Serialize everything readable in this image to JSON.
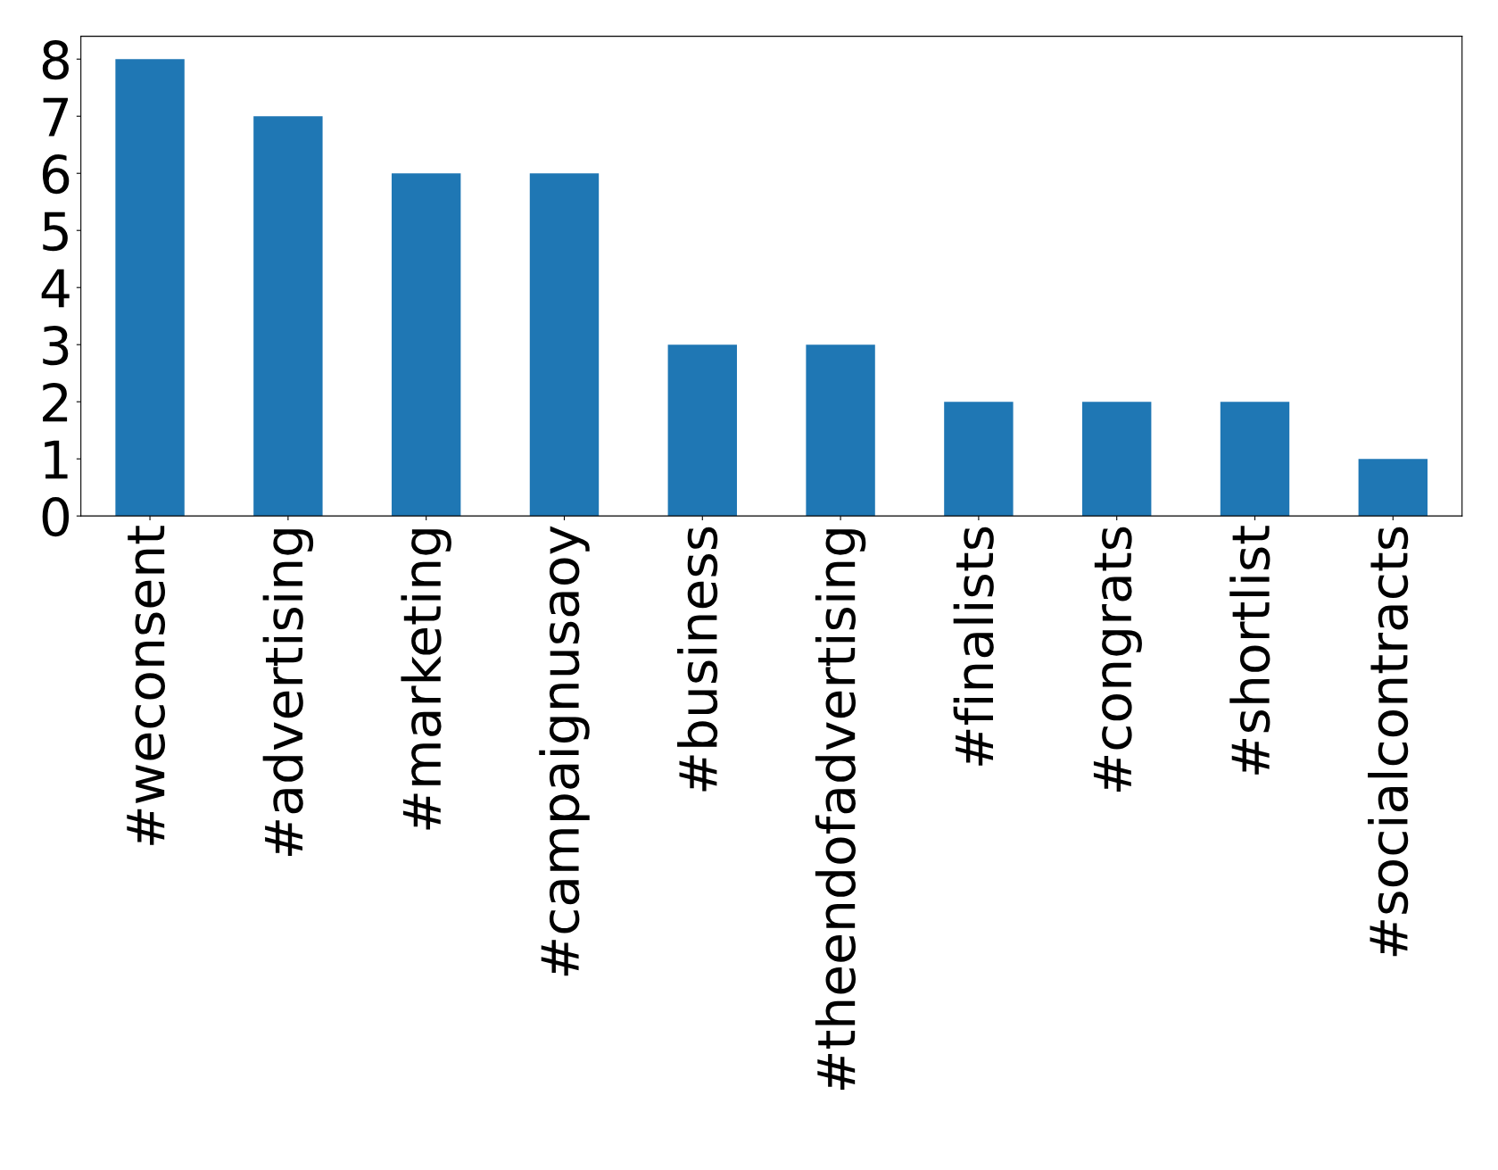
{
  "chart_data": {
    "type": "bar",
    "categories": [
      "#weconsent",
      "#advertising",
      "#marketing",
      "#campaignusaoy",
      "#business",
      "#theendofadvertising",
      "#finalists",
      "#congrats",
      "#shortlist",
      "#socialcontracts"
    ],
    "values": [
      8,
      7,
      6,
      6,
      3,
      3,
      2,
      2,
      2,
      1
    ],
    "color": "#1f77b4",
    "ylim": [
      0,
      8.4
    ],
    "yticks": [
      0,
      1,
      2,
      3,
      4,
      5,
      6,
      7,
      8
    ],
    "grid": false,
    "legend": false
  }
}
